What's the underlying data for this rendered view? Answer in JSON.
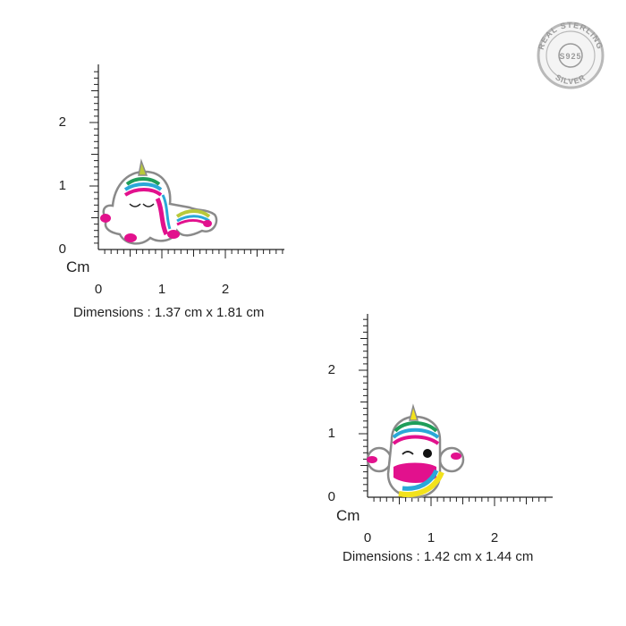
{
  "seal": {
    "top_text": "REAL STERLING",
    "center_text": "S925",
    "bottom_text": "SILVER"
  },
  "ruler_unit": "Cm",
  "products": [
    {
      "id": "sleeping-unicorn",
      "x_ticks": [
        "0",
        "1",
        "2"
      ],
      "y_ticks": [
        "0",
        "1",
        "2"
      ],
      "dimensions_label": "Dimensions : 1.37 cm x 1.81 cm"
    },
    {
      "id": "winking-unicorn",
      "x_ticks": [
        "0",
        "1",
        "2"
      ],
      "y_ticks": [
        "0",
        "1",
        "2"
      ],
      "dimensions_label": "Dimensions : 1.42 cm x 1.44 cm"
    }
  ],
  "colors": {
    "pink": "#e2118d",
    "blue": "#2aa8d8",
    "green": "#1f9e5a",
    "yellow": "#f2e21c",
    "lime": "#b9c93a",
    "silver": "#8a8a8a"
  }
}
